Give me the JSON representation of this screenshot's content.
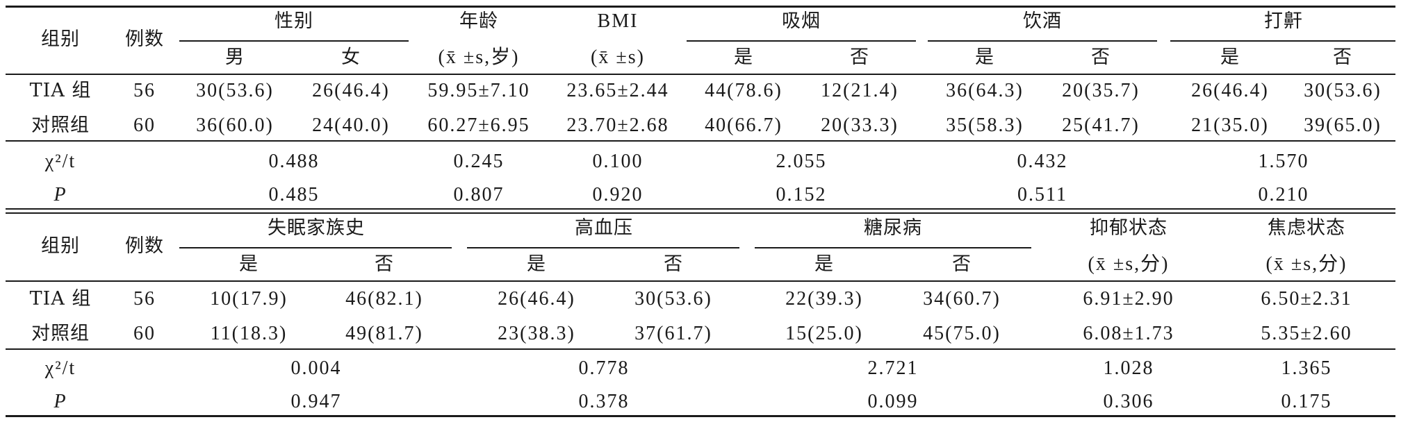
{
  "t1": {
    "h_group": "组别",
    "h_count": "例数",
    "h_sex": "性别",
    "h_male": "男",
    "h_female": "女",
    "h_age1": "年龄",
    "h_age2": "(x̄ ±s,岁)",
    "h_bmi1": "BMI",
    "h_bmi2": "(x̄ ±s)",
    "h_smoke": "吸烟",
    "h_drink": "饮酒",
    "h_snore": "打鼾",
    "h_yes": "是",
    "h_no": "否",
    "rows": [
      {
        "group": "TIA 组",
        "n": "56",
        "male": "30(53.6)",
        "female": "26(46.4)",
        "age": "59.95±7.10",
        "bmi": "23.65±2.44",
        "smoke_yes": "44(78.6)",
        "smoke_no": "12(21.4)",
        "drink_yes": "36(64.3)",
        "drink_no": "20(35.7)",
        "snore_yes": "26(46.4)",
        "snore_no": "30(53.6)"
      },
      {
        "group": "对照组",
        "n": "60",
        "male": "36(60.0)",
        "female": "24(40.0)",
        "age": "60.27±6.95",
        "bmi": "23.70±2.68",
        "smoke_yes": "40(66.7)",
        "smoke_no": "20(33.3)",
        "drink_yes": "35(58.3)",
        "drink_no": "25(41.7)",
        "snore_yes": "21(35.0)",
        "snore_no": "39(65.0)"
      }
    ],
    "stat_label": "χ²/t",
    "p_label": "P",
    "stats": {
      "sex": "0.488",
      "age": "0.245",
      "bmi": "0.100",
      "smoke": "2.055",
      "drink": "0.432",
      "snore": "1.570"
    },
    "p": {
      "sex": "0.485",
      "age": "0.807",
      "bmi": "0.920",
      "smoke": "0.152",
      "drink": "0.511",
      "snore": "0.210"
    }
  },
  "t2": {
    "h_group": "组别",
    "h_count": "例数",
    "h_insomnia": "失眠家族史",
    "h_htn": "高血压",
    "h_dm": "糖尿病",
    "h_dep1": "抑郁状态",
    "h_dep2": "(x̄ ±s,分)",
    "h_anx1": "焦虑状态",
    "h_anx2": "(x̄ ±s,分)",
    "h_yes": "是",
    "h_no": "否",
    "rows": [
      {
        "group": "TIA 组",
        "n": "56",
        "ins_yes": "10(17.9)",
        "ins_no": "46(82.1)",
        "htn_yes": "26(46.4)",
        "htn_no": "30(53.6)",
        "dm_yes": "22(39.3)",
        "dm_no": "34(60.7)",
        "dep": "6.91±2.90",
        "anx": "6.50±2.31"
      },
      {
        "group": "对照组",
        "n": "60",
        "ins_yes": "11(18.3)",
        "ins_no": "49(81.7)",
        "htn_yes": "23(38.3)",
        "htn_no": "37(61.7)",
        "dm_yes": "15(25.0)",
        "dm_no": "45(75.0)",
        "dep": "6.08±1.73",
        "anx": "5.35±2.60"
      }
    ],
    "stat_label": "χ²/t",
    "p_label": "P",
    "stats": {
      "ins": "0.004",
      "htn": "0.778",
      "dm": "2.721",
      "dep": "1.028",
      "anx": "1.365"
    },
    "p": {
      "ins": "0.947",
      "htn": "0.378",
      "dm": "0.099",
      "dep": "0.306",
      "anx": "0.175"
    }
  }
}
